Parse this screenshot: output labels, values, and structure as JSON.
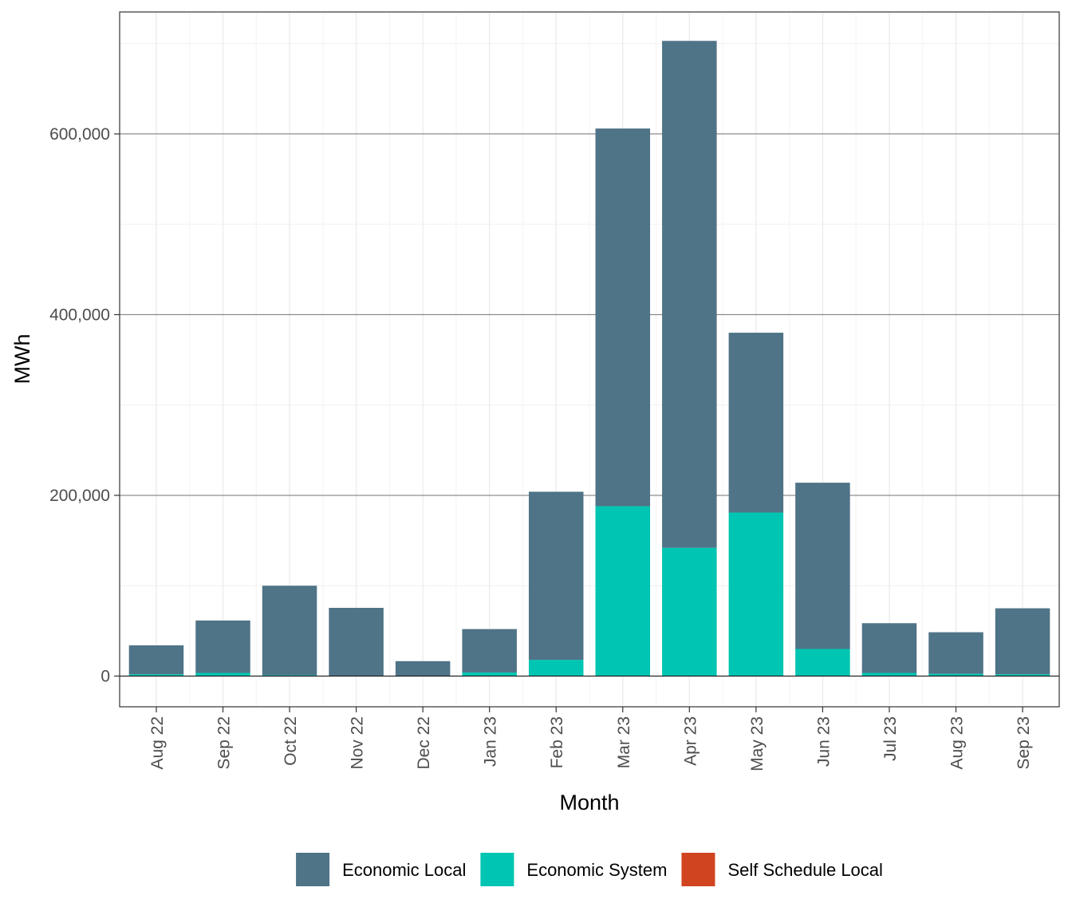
{
  "chart_data": {
    "type": "bar",
    "stacked": true,
    "title": "",
    "xlabel": "Month",
    "ylabel": "MWh",
    "categories": [
      "Aug 22",
      "Sep 22",
      "Oct 22",
      "Nov 22",
      "Dec 22",
      "Jan 23",
      "Feb 23",
      "Mar 23",
      "Apr 23",
      "May 23",
      "Jun 23",
      "Jul 23",
      "Aug 23",
      "Sep 23"
    ],
    "series": [
      {
        "name": "Self Schedule Local",
        "color": "#d04420",
        "values": [
          0,
          0,
          0,
          0,
          0,
          0,
          0,
          0,
          0,
          0,
          0,
          0,
          0,
          0
        ]
      },
      {
        "name": "Economic System",
        "color": "#00c5b2",
        "values": [
          2000,
          3500,
          1000,
          500,
          500,
          4000,
          18000,
          188000,
          142000,
          181000,
          30000,
          3500,
          2500,
          2000
        ]
      },
      {
        "name": "Economic Local",
        "color": "#4f7387",
        "values": [
          32000,
          58000,
          99000,
          75000,
          16000,
          48000,
          186000,
          418000,
          561000,
          199000,
          184000,
          55000,
          46000,
          73000
        ]
      }
    ],
    "ylim": [
      -34000,
      735000
    ],
    "yticks": [
      0,
      200000,
      400000,
      600000
    ],
    "ytick_labels": [
      "0",
      "200,000",
      "400,000",
      "600,000"
    ],
    "grid": true,
    "legend": {
      "position": "bottom",
      "entries": [
        {
          "label": "Economic Local",
          "color": "#4f7387"
        },
        {
          "label": "Economic System",
          "color": "#00c5b2"
        },
        {
          "label": "Self Schedule Local",
          "color": "#d04420"
        }
      ]
    }
  }
}
